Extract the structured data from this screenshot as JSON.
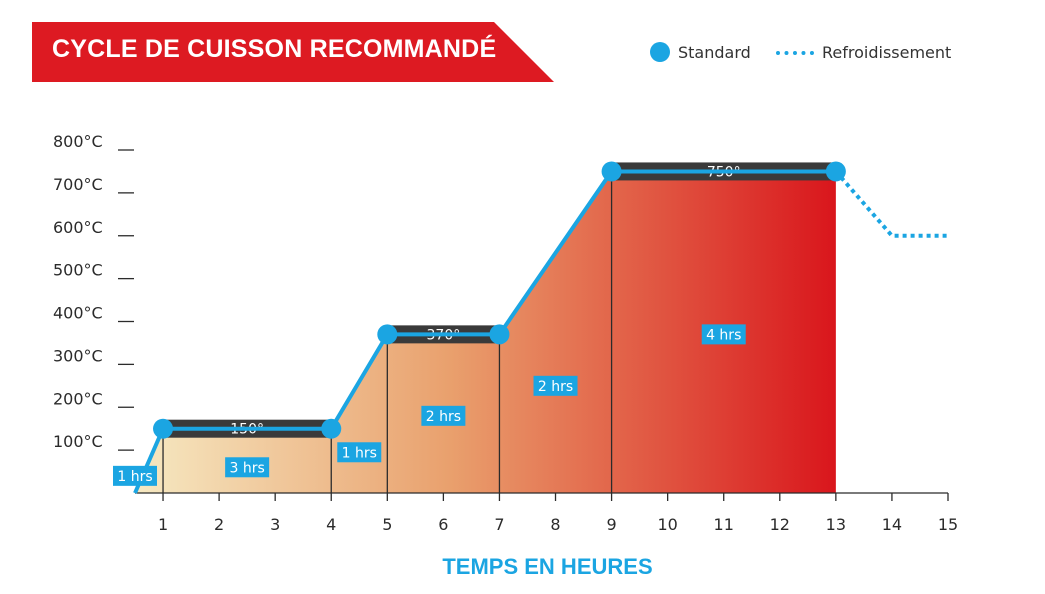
{
  "header": {
    "title": "CYCLE DE CUISSON RECOMMANDÉ"
  },
  "legend": {
    "standard": "Standard",
    "cooling": "Refroidissement"
  },
  "chart_data": {
    "type": "line",
    "title": "CYCLE DE CUISSON RECOMMANDÉ",
    "xlabel": "TEMPS EN HEURES",
    "ylabel": "",
    "xlim": [
      0.5,
      15
    ],
    "ylim": [
      0,
      800
    ],
    "x_ticks": [
      1,
      2,
      3,
      4,
      5,
      6,
      7,
      8,
      9,
      10,
      11,
      12,
      13,
      14,
      15
    ],
    "y_ticks": [
      100,
      200,
      300,
      400,
      500,
      600,
      700,
      800
    ],
    "y_tick_labels": [
      "100°C",
      "200°C",
      "300°C",
      "400°C",
      "500°C",
      "600°C",
      "700°C",
      "800°C"
    ],
    "grid": false,
    "legend_position": "top-right",
    "series": [
      {
        "name": "Standard",
        "x": [
          0.5,
          1,
          4,
          5,
          7,
          9,
          13
        ],
        "y": [
          0,
          150,
          150,
          370,
          370,
          750,
          750
        ],
        "color": "#1ba5e2"
      },
      {
        "name": "Refroidissement",
        "x": [
          13,
          14,
          15
        ],
        "y": [
          750,
          600,
          600
        ],
        "color": "#1ba5e2",
        "style": "dotted"
      }
    ],
    "markers": [
      [
        1,
        150
      ],
      [
        4,
        150
      ],
      [
        5,
        370
      ],
      [
        7,
        370
      ],
      [
        9,
        750
      ],
      [
        13,
        750
      ]
    ],
    "plateaus": [
      {
        "label": "150°",
        "x0": 1,
        "x1": 4,
        "y": 150
      },
      {
        "label": "370°",
        "x0": 5,
        "x1": 7,
        "y": 370
      },
      {
        "label": "750°",
        "x0": 9,
        "x1": 13,
        "y": 750
      }
    ],
    "durations": [
      {
        "label": "1 hrs",
        "x": 0.5,
        "y": 40
      },
      {
        "label": "3 hrs",
        "x": 2.5,
        "y": 60
      },
      {
        "label": "1 hrs",
        "x": 4.5,
        "y": 95
      },
      {
        "label": "2 hrs",
        "x": 6,
        "y": 180
      },
      {
        "label": "2 hrs",
        "x": 8,
        "y": 250
      },
      {
        "label": "4 hrs",
        "x": 11,
        "y": 370
      }
    ],
    "colors": {
      "line": "#1ba5e2",
      "plateau_bar": "#3a3a3a",
      "fill_start": "#f6e9c2",
      "fill_mid": "#e9a06d",
      "fill_end": "#d9161c",
      "banner": "#dd1a22"
    }
  }
}
